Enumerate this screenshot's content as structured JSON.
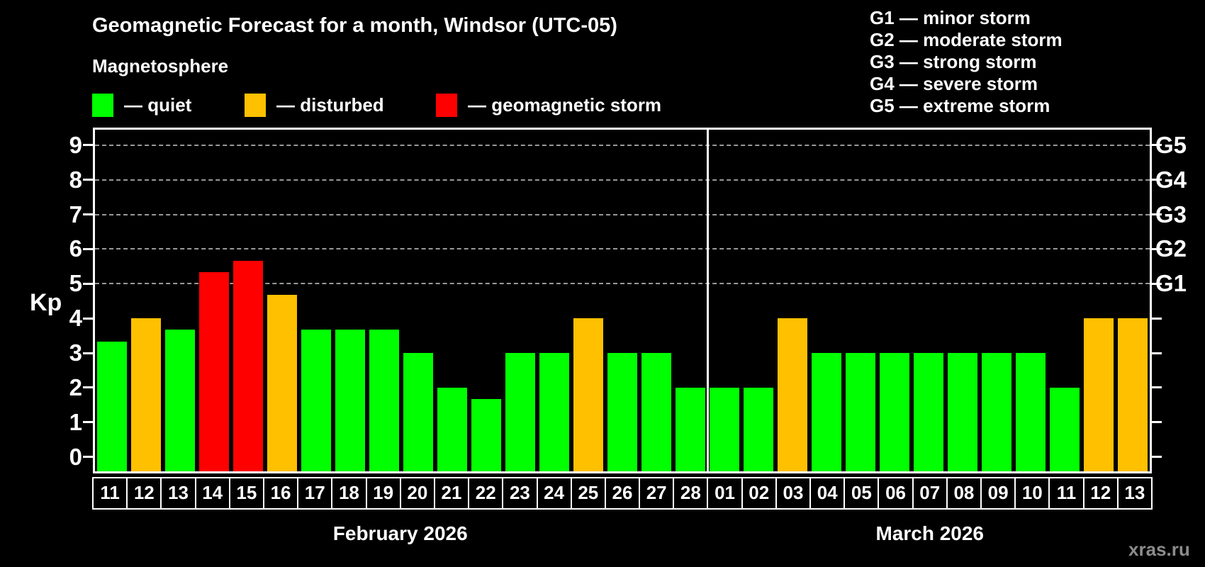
{
  "subtitle": "Magnetosphere",
  "watermark": "xras.ru",
  "colors": {
    "quiet": "#00ff00",
    "disturbed": "#ffc000",
    "storm": "#ff0000",
    "grid": "#999999",
    "frame": "#ffffff"
  },
  "legend": {
    "items": [
      {
        "status": "quiet",
        "label": "— quiet"
      },
      {
        "status": "disturbed",
        "label": "— disturbed"
      },
      {
        "status": "storm",
        "label": "— geomagnetic storm"
      }
    ]
  },
  "g_legend": [
    "G1 — minor storm",
    "G2 — moderate storm",
    "G3 — strong storm",
    "G4 — severe storm",
    "G5 — extreme storm"
  ],
  "months": [
    {
      "label": "February 2026",
      "days": 18
    },
    {
      "label": "March 2026",
      "days": 13
    }
  ],
  "chart_data": {
    "type": "bar",
    "title": "Geomagnetic Forecast for a month, Windsor (UTC-05)",
    "ylabel": "Kp",
    "ylim": [
      0,
      9
    ],
    "yticks": [
      0,
      1,
      2,
      3,
      4,
      5,
      6,
      7,
      8,
      9
    ],
    "gridlines": [
      5,
      6,
      7,
      8,
      9
    ],
    "grid_style": "dashed horizontal, only at Kp 5-9",
    "legend_position": "top-left",
    "right_axis": [
      {
        "label": "G1",
        "value": 5
      },
      {
        "label": "G2",
        "value": 6
      },
      {
        "label": "G3",
        "value": 7
      },
      {
        "label": "G4",
        "value": 8
      },
      {
        "label": "G5",
        "value": 9
      }
    ],
    "categories": [
      "11",
      "12",
      "13",
      "14",
      "15",
      "16",
      "17",
      "18",
      "19",
      "20",
      "21",
      "22",
      "23",
      "24",
      "25",
      "26",
      "27",
      "28",
      "01",
      "02",
      "03",
      "04",
      "05",
      "06",
      "07",
      "08",
      "09",
      "10",
      "11",
      "12",
      "13"
    ],
    "values": [
      3.33,
      4,
      3.67,
      5.33,
      5.67,
      4.67,
      3.67,
      3.67,
      3.67,
      3,
      2,
      1.67,
      3,
      3,
      4,
      3,
      3,
      2,
      2,
      2,
      4,
      3,
      3,
      3,
      3,
      3,
      3,
      3,
      2,
      4,
      4
    ],
    "statuses": [
      "quiet",
      "disturbed",
      "quiet",
      "storm",
      "storm",
      "disturbed",
      "quiet",
      "quiet",
      "quiet",
      "quiet",
      "quiet",
      "quiet",
      "quiet",
      "quiet",
      "disturbed",
      "quiet",
      "quiet",
      "quiet",
      "quiet",
      "quiet",
      "disturbed",
      "quiet",
      "quiet",
      "quiet",
      "quiet",
      "quiet",
      "quiet",
      "quiet",
      "quiet",
      "disturbed",
      "disturbed"
    ]
  }
}
